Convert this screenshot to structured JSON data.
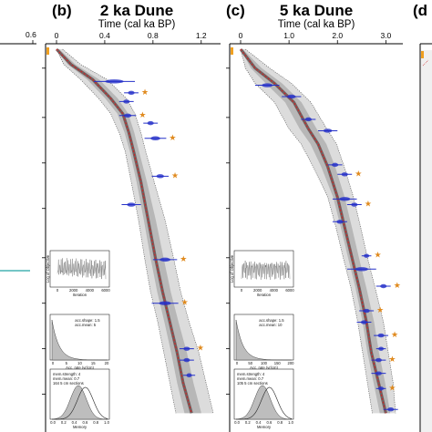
{
  "figure": {
    "left_fragment": {
      "tick_label": "0.6"
    },
    "right_fragment": {
      "letter": "(d"
    }
  },
  "chart_data": [
    {
      "type": "line",
      "panel_letter": "(b)",
      "title": "2 ka Dune",
      "xlabel": "Time (cal ka BP)",
      "xlim": [
        0,
        1.3
      ],
      "xticks": [
        0,
        0.4,
        0.8,
        1.2
      ],
      "xtick_labels": [
        "0",
        "0.4",
        "0.8",
        "1.2"
      ],
      "ylim": [
        0,
        100
      ],
      "y_inverted": true,
      "yticks": [
        5,
        18,
        30,
        42,
        55,
        67,
        79,
        91
      ],
      "median_model": {
        "x": [
          0,
          0.12,
          0.3,
          0.45,
          0.55,
          0.6,
          0.64,
          0.7,
          0.76,
          0.82,
          0.88,
          0.94,
          1.0,
          1.05,
          1.12
        ],
        "y": [
          0,
          4,
          8,
          13,
          17,
          22,
          27,
          35,
          45,
          55,
          64,
          72,
          80,
          88,
          96
        ]
      },
      "envelope": {
        "x_low": [
          0,
          0.06,
          0.2,
          0.35,
          0.45,
          0.52,
          0.57,
          0.62,
          0.68,
          0.73,
          0.78,
          0.84,
          0.89,
          0.94,
          0.99
        ],
        "x_high": [
          0.05,
          0.2,
          0.42,
          0.58,
          0.65,
          0.7,
          0.74,
          0.81,
          0.9,
          0.97,
          1.03,
          1.1,
          1.18,
          1.24,
          1.3
        ],
        "y": [
          0,
          4,
          8,
          13,
          17,
          22,
          27,
          35,
          45,
          55,
          64,
          72,
          80,
          88,
          96
        ]
      },
      "dates": [
        {
          "x": 0.48,
          "y": 8.5,
          "width": 0.34,
          "outlier": false
        },
        {
          "x": 0.62,
          "y": 11.5,
          "width": 0.12,
          "outlier": true
        },
        {
          "x": 0.58,
          "y": 13.8,
          "width": 0.12,
          "outlier": false
        },
        {
          "x": 0.59,
          "y": 17.5,
          "width": 0.14,
          "outlier": true
        },
        {
          "x": 0.78,
          "y": 19.5,
          "width": 0.12,
          "outlier": false
        },
        {
          "x": 0.82,
          "y": 23.5,
          "width": 0.18,
          "outlier": true
        },
        {
          "x": 0.86,
          "y": 33.5,
          "width": 0.14,
          "outlier": true
        },
        {
          "x": 0.62,
          "y": 41,
          "width": 0.16,
          "outlier": false
        },
        {
          "x": 0.9,
          "y": 55.5,
          "width": 0.2,
          "outlier": true
        },
        {
          "x": 0.9,
          "y": 67,
          "width": 0.22,
          "outlier": true
        },
        {
          "x": 1.08,
          "y": 79,
          "width": 0.12,
          "outlier": true
        },
        {
          "x": 1.08,
          "y": 82,
          "width": 0.12,
          "outlier": false
        },
        {
          "x": 1.1,
          "y": 86,
          "width": 0.1,
          "outlier": false
        }
      ],
      "insets": [
        {
          "type": "trace",
          "ylabel": "Log of Objective",
          "xlabel": "Iteration",
          "xticks": [
            "0",
            "2000",
            "4000",
            "6000"
          ]
        },
        {
          "type": "prior_posterior",
          "xlabel": "Acc. rate (yr/cm)",
          "legend": [
            "acc.shape: 1.5",
            "acc.mean: 5"
          ],
          "xticks": [
            "0",
            "5",
            "10",
            "15",
            "20"
          ]
        },
        {
          "type": "prior_posterior",
          "xlabel": "Memory",
          "legend": [
            "mem.strength: 4",
            "mem.mean: 0.7",
            "164 5 cm sections"
          ],
          "xticks": [
            "0.0",
            "0.2",
            "0.4",
            "0.6",
            "0.8",
            "1.0"
          ]
        }
      ]
    },
    {
      "type": "line",
      "panel_letter": "(c)",
      "title": "5 ka Dune",
      "xlabel": "Time (cal ka BP)",
      "xlim": [
        0,
        3.2
      ],
      "xticks": [
        0,
        1.0,
        2.0,
        3.0
      ],
      "xtick_labels": [
        "0",
        "1.0",
        "2.0",
        "3.0"
      ],
      "ylim": [
        0,
        100
      ],
      "y_inverted": true,
      "yticks": [
        5,
        18,
        30,
        42,
        55,
        67,
        79,
        91
      ],
      "median_model": {
        "x": [
          0,
          0.3,
          0.7,
          1.1,
          1.4,
          1.6,
          1.8,
          2.0,
          2.15,
          2.3,
          2.45,
          2.6,
          2.7,
          2.85,
          3.0
        ],
        "y": [
          0,
          5,
          9,
          14,
          21,
          25,
          31,
          39,
          47,
          55,
          63,
          72,
          80,
          88,
          96
        ]
      },
      "envelope": {
        "x_low": [
          0,
          0.1,
          0.3,
          0.7,
          1.0,
          1.25,
          1.5,
          1.8,
          1.97,
          2.12,
          2.28,
          2.42,
          2.52,
          2.62,
          2.72
        ],
        "x_high": [
          0.1,
          0.6,
          1.05,
          1.45,
          1.78,
          1.98,
          2.14,
          2.33,
          2.48,
          2.62,
          2.78,
          2.95,
          3.05,
          3.15,
          3.2
        ],
        "y": [
          0,
          5,
          9,
          14,
          21,
          25,
          31,
          39,
          47,
          55,
          63,
          72,
          80,
          88,
          96
        ]
      },
      "dates": [
        {
          "x": 0.55,
          "y": 9.5,
          "width": 0.5,
          "outlier": false
        },
        {
          "x": 1.05,
          "y": 12.5,
          "width": 0.4,
          "outlier": false
        },
        {
          "x": 1.4,
          "y": 18.5,
          "width": 0.3,
          "outlier": false
        },
        {
          "x": 1.8,
          "y": 21.5,
          "width": 0.4,
          "outlier": false
        },
        {
          "x": 1.95,
          "y": 30.5,
          "width": 0.3,
          "outlier": false
        },
        {
          "x": 2.15,
          "y": 33,
          "width": 0.3,
          "outlier": true
        },
        {
          "x": 2.15,
          "y": 39.5,
          "width": 0.5,
          "outlier": false
        },
        {
          "x": 2.35,
          "y": 41,
          "width": 0.3,
          "outlier": true
        },
        {
          "x": 2.05,
          "y": 45.5,
          "width": 0.3,
          "outlier": false
        },
        {
          "x": 2.6,
          "y": 54.5,
          "width": 0.2,
          "outlier": true
        },
        {
          "x": 2.5,
          "y": 58,
          "width": 0.6,
          "outlier": false
        },
        {
          "x": 2.95,
          "y": 62.5,
          "width": 0.3,
          "outlier": true
        },
        {
          "x": 2.6,
          "y": 69,
          "width": 0.3,
          "outlier": true
        },
        {
          "x": 2.55,
          "y": 72,
          "width": 0.3,
          "outlier": false
        },
        {
          "x": 2.9,
          "y": 75.5,
          "width": 0.3,
          "outlier": true
        },
        {
          "x": 2.9,
          "y": 79,
          "width": 0.2,
          "outlier": false
        },
        {
          "x": 2.85,
          "y": 82,
          "width": 0.3,
          "outlier": true
        },
        {
          "x": 2.85,
          "y": 85.5,
          "width": 0.3,
          "outlier": false
        },
        {
          "x": 2.9,
          "y": 89.5,
          "width": 0.2,
          "outlier": true
        },
        {
          "x": 3.1,
          "y": 95,
          "width": 0.3,
          "outlier": false
        }
      ],
      "insets": [
        {
          "type": "trace",
          "ylabel": "Log of Objective",
          "xlabel": "Iteration",
          "xticks": [
            "0",
            "2000",
            "4000",
            "6000"
          ]
        },
        {
          "type": "prior_posterior",
          "xlabel": "Acc. rate (yr/cm)",
          "legend": [
            "acc.shape: 1.5",
            "acc.mean: 10"
          ],
          "xticks": [
            "0",
            "50",
            "100",
            "150",
            "200"
          ]
        },
        {
          "type": "prior_posterior",
          "xlabel": "Memory",
          "legend": [
            "mem.strength: 4",
            "mem.mean: 0.7",
            "105 5 cm sections"
          ],
          "xticks": [
            "0.0",
            "0.2",
            "0.4",
            "0.6",
            "0.8",
            "1.0"
          ]
        }
      ]
    }
  ],
  "colors": {
    "median": "#d22222",
    "envelope_band": "#bfbfbf",
    "dense_core": "#3a1a1a",
    "dates": "#2430c8",
    "outlier_star": "#e08a1e",
    "fragment_line": "#23a3a3",
    "top_marker": "#f0a020"
  }
}
